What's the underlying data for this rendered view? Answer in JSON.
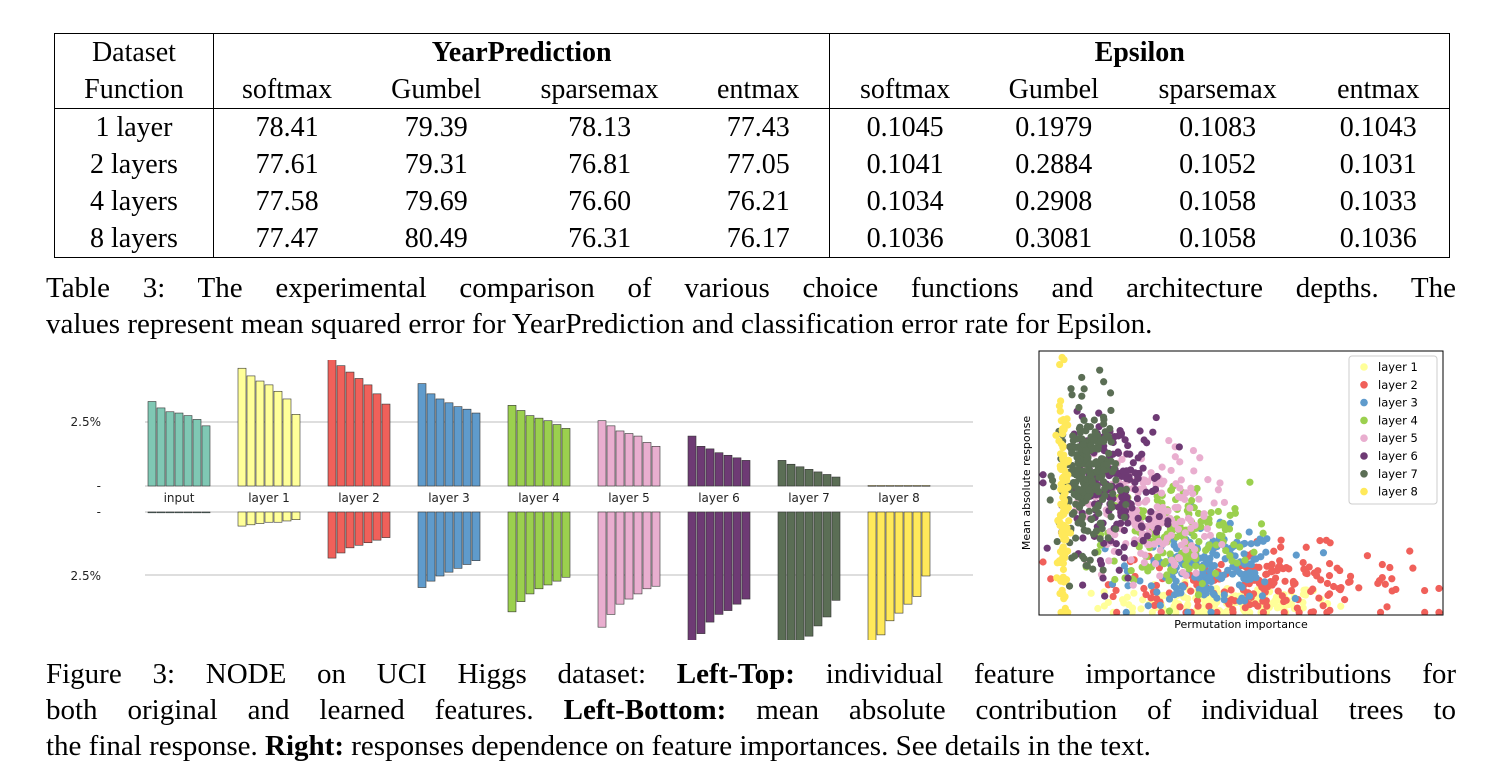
{
  "table": {
    "header": {
      "dataset_label": "Dataset",
      "function_label": "Function",
      "groups": [
        "YearPrediction",
        "Epsilon"
      ],
      "columns": [
        "softmax",
        "Gumbel",
        "sparsemax",
        "entmax",
        "softmax",
        "Gumbel",
        "sparsemax",
        "entmax"
      ]
    },
    "rows": [
      {
        "label": "1 layer",
        "values": [
          "78.41",
          "79.39",
          "78.13",
          "77.43",
          "0.1045",
          "0.1979",
          "0.1083",
          "0.1043"
        ]
      },
      {
        "label": "2 layers",
        "values": [
          "77.61",
          "79.31",
          "76.81",
          "77.05",
          "0.1041",
          "0.2884",
          "0.1052",
          "0.1031"
        ]
      },
      {
        "label": "4 layers",
        "values": [
          "77.58",
          "79.69",
          "76.60",
          "76.21",
          "0.1034",
          "0.2908",
          "0.1058",
          "0.1033"
        ]
      },
      {
        "label": "8 layers",
        "values": [
          "77.47",
          "80.49",
          "76.31",
          "76.17",
          "0.1036",
          "0.3081",
          "0.1058",
          "0.1036"
        ]
      }
    ]
  },
  "table_caption": {
    "line1": "Table 3: The experimental comparison of various choice functions and architecture depths. The",
    "line2": "values represent mean squared error for YearPrediction and classification error rate for Epsilon."
  },
  "bar_chart": {
    "chart_data": {
      "type": "bar",
      "groups": [
        "input",
        "layer 1",
        "layer 2",
        "layer 3",
        "layer 4",
        "layer 5",
        "layer 6",
        "layer 7",
        "layer 8"
      ],
      "colors": [
        "#7fc8b4",
        "#ffff99",
        "#f0605a",
        "#5f9bcc",
        "#9bd04e",
        "#e9aecf",
        "#6e3a74",
        "#5b6e55",
        "#ffe95a"
      ],
      "top_tick_label": "2.5%",
      "bottom_tick_label": "2.5%",
      "top_values_pct": [
        [
          3.3,
          3.05,
          2.9,
          2.85,
          2.75,
          2.6,
          2.35
        ],
        [
          4.6,
          4.3,
          4.1,
          3.95,
          3.7,
          3.4,
          2.8
        ],
        [
          5.5,
          4.7,
          4.45,
          4.2,
          3.95,
          3.6,
          3.2
        ],
        [
          4.0,
          3.6,
          3.4,
          3.25,
          3.1,
          3.0,
          2.85
        ],
        [
          3.15,
          2.95,
          2.75,
          2.65,
          2.55,
          2.4,
          2.25
        ],
        [
          2.55,
          2.35,
          2.15,
          2.05,
          1.95,
          1.7,
          1.55
        ],
        [
          1.95,
          1.55,
          1.45,
          1.3,
          1.2,
          1.1,
          1.0
        ],
        [
          1.0,
          0.85,
          0.75,
          0.65,
          0.55,
          0.45,
          0.35
        ],
        [
          0.02,
          0.02,
          0.02,
          0.02,
          0.02,
          0.02,
          0.02
        ]
      ],
      "bottom_values_pct": [
        [
          0.02,
          0.02,
          0.02,
          0.02,
          0.02,
          0.02,
          0.02
        ],
        [
          0.55,
          0.5,
          0.45,
          0.4,
          0.4,
          0.35,
          0.3
        ],
        [
          1.8,
          1.6,
          1.4,
          1.3,
          1.2,
          1.1,
          1.0
        ],
        [
          2.95,
          2.7,
          2.5,
          2.35,
          2.2,
          2.05,
          1.9
        ],
        [
          3.9,
          3.5,
          3.2,
          3.0,
          2.85,
          2.7,
          2.55
        ],
        [
          4.5,
          4.0,
          3.6,
          3.4,
          3.2,
          3.0,
          2.9
        ],
        [
          5.6,
          4.75,
          4.3,
          4.0,
          3.85,
          3.6,
          3.4
        ],
        [
          6.4,
          5.35,
          5.05,
          4.85,
          4.45,
          4.1,
          3.45
        ],
        [
          5.55,
          4.8,
          4.25,
          3.95,
          3.6,
          3.3,
          2.5
        ]
      ]
    }
  },
  "scatter": {
    "chart_data": {
      "type": "scatter",
      "xlabel": "Permutation importance",
      "ylabel": "Mean absolute response",
      "xlim": [
        0,
        100
      ],
      "ylim": [
        0,
        100
      ],
      "legend_position": "top-right",
      "series": [
        {
          "name": "layer 1",
          "color": "#ffff99",
          "cx": 45,
          "cy": 5,
          "sx": 14,
          "sy": 3,
          "n": 160
        },
        {
          "name": "layer 2",
          "color": "#f0605a",
          "cx": 55,
          "cy": 12,
          "sx": 18,
          "sy": 7,
          "n": 200
        },
        {
          "name": "layer 3",
          "color": "#5f9bcc",
          "cx": 42,
          "cy": 18,
          "sx": 9,
          "sy": 7,
          "n": 180
        },
        {
          "name": "layer 4",
          "color": "#9bd04e",
          "cx": 34,
          "cy": 30,
          "sx": 9,
          "sy": 10,
          "n": 170
        },
        {
          "name": "layer 5",
          "color": "#e9aecf",
          "cx": 27,
          "cy": 38,
          "sx": 8,
          "sy": 12,
          "n": 180
        },
        {
          "name": "layer 6",
          "color": "#6e3a74",
          "cx": 19,
          "cy": 48,
          "sx": 6,
          "sy": 13,
          "n": 190
        },
        {
          "name": "layer 7",
          "color": "#5b6e55",
          "cx": 12,
          "cy": 52,
          "sx": 3.5,
          "sy": 14,
          "n": 240
        },
        {
          "name": "layer 8",
          "color": "#ffe95a",
          "cx": 6,
          "cy": 40,
          "sx": 0.6,
          "sy": 22,
          "n": 120
        }
      ]
    }
  },
  "figure_caption": {
    "p1": "Figure 3: NODE on UCI Higgs dataset: ",
    "b1": "Left-Top:",
    "p2": " individual feature importance distributions for",
    "p3": "both original and learned features. ",
    "b2": "Left-Bottom:",
    "p4": " mean absolute contribution of individual trees to",
    "p5": "the final response. ",
    "b3": "Right:",
    "p6": " responses dependence on feature importances. See details in the text."
  }
}
